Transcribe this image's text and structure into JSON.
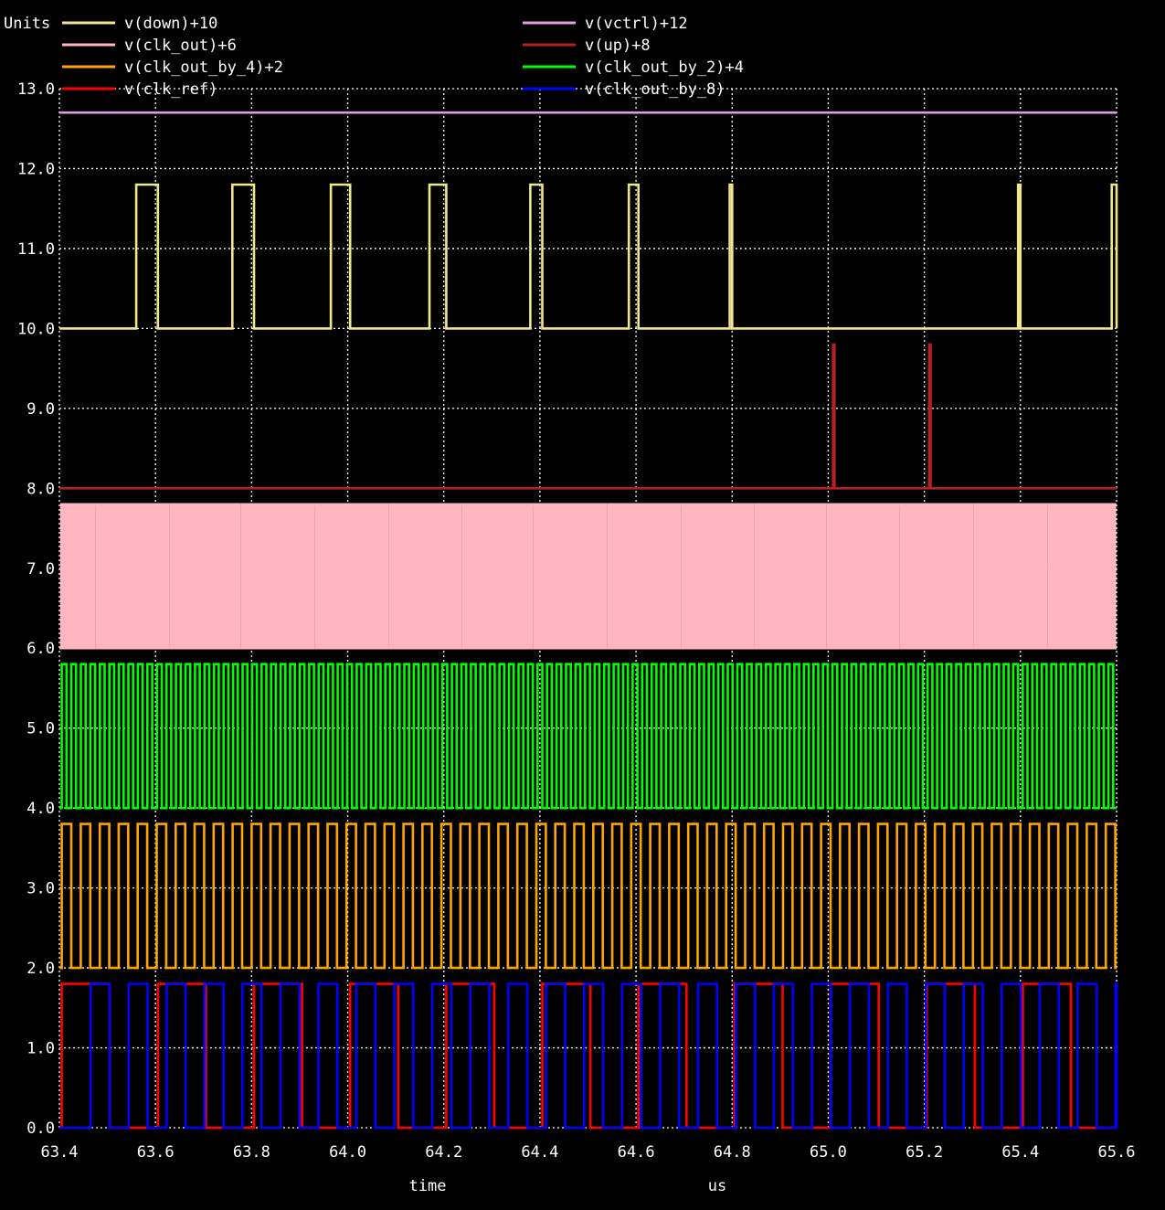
{
  "chart_data": {
    "type": "line",
    "title": "",
    "ylabel_corner": "Units",
    "xlabel": "time",
    "xunit": "us",
    "xlim": [
      63.4,
      65.6
    ],
    "ylim": [
      0,
      13
    ],
    "x_ticks": [
      63.4,
      63.6,
      63.8,
      64.0,
      64.2,
      64.4,
      64.6,
      64.8,
      65.0,
      65.2,
      65.4,
      65.6
    ],
    "x_tick_labels": [
      "63.4",
      "63.6",
      "63.8",
      "64.0",
      "64.2",
      "64.4",
      "64.6",
      "64.8",
      "65.0",
      "65.2",
      "65.4",
      "65.6"
    ],
    "y_ticks": [
      0,
      1,
      2,
      3,
      4,
      5,
      6,
      7,
      8,
      9,
      10,
      11,
      12,
      13
    ],
    "y_tick_labels": [
      "0.0",
      "1.0",
      "2.0",
      "3.0",
      "4.0",
      "5.0",
      "6.0",
      "7.0",
      "8.0",
      "9.0",
      "10.0",
      "11.0",
      "12.0",
      "13.0"
    ],
    "grid": true,
    "legend_placement": "top, two columns",
    "series": [
      {
        "name": "v(down)+10",
        "color": "#f0e68c",
        "low": 10.0,
        "high": 11.8,
        "pulses": [
          [
            63.56,
            63.605
          ],
          [
            63.76,
            63.805
          ],
          [
            63.965,
            64.005
          ],
          [
            64.17,
            64.205
          ],
          [
            64.38,
            64.405
          ],
          [
            64.585,
            64.605
          ],
          [
            64.795,
            64.8
          ],
          [
            65.395,
            65.4
          ],
          [
            65.59,
            65.6
          ]
        ]
      },
      {
        "name": "v(vctrl)+12",
        "color": "#dda0dd",
        "values_x": [
          63.4,
          65.6
        ],
        "values_y": [
          12.7,
          12.7
        ]
      },
      {
        "name": "v(clk_out)+6",
        "color": "#ffb6c1",
        "low": 6.0,
        "high": 7.8,
        "period": 0.0099,
        "t0": 63.404
      },
      {
        "name": "v(up)+8",
        "color": "#b22222",
        "low": 8.0,
        "high": 9.8,
        "pulses": [
          [
            65.01,
            65.013
          ],
          [
            65.21,
            65.213
          ]
        ]
      },
      {
        "name": "v(clk_out_by_4)+2",
        "color": "#ffa500",
        "low": 2.0,
        "high": 3.8,
        "period": 0.0395,
        "t0": 63.405
      },
      {
        "name": "v(clk_out_by_2)+4",
        "color": "#00ff00",
        "low": 4.0,
        "high": 5.8,
        "period": 0.0198,
        "t0": 63.405
      },
      {
        "name": "v(clk_ref)",
        "color": "#ff0000",
        "low": 0.0,
        "high": 1.8,
        "period": 0.2,
        "t0": 63.405
      },
      {
        "name": "v(clk_out_by_8)",
        "color": "#0000ff",
        "low": 0.0,
        "high": 1.8,
        "period": 0.079,
        "t0": 63.465
      }
    ]
  }
}
